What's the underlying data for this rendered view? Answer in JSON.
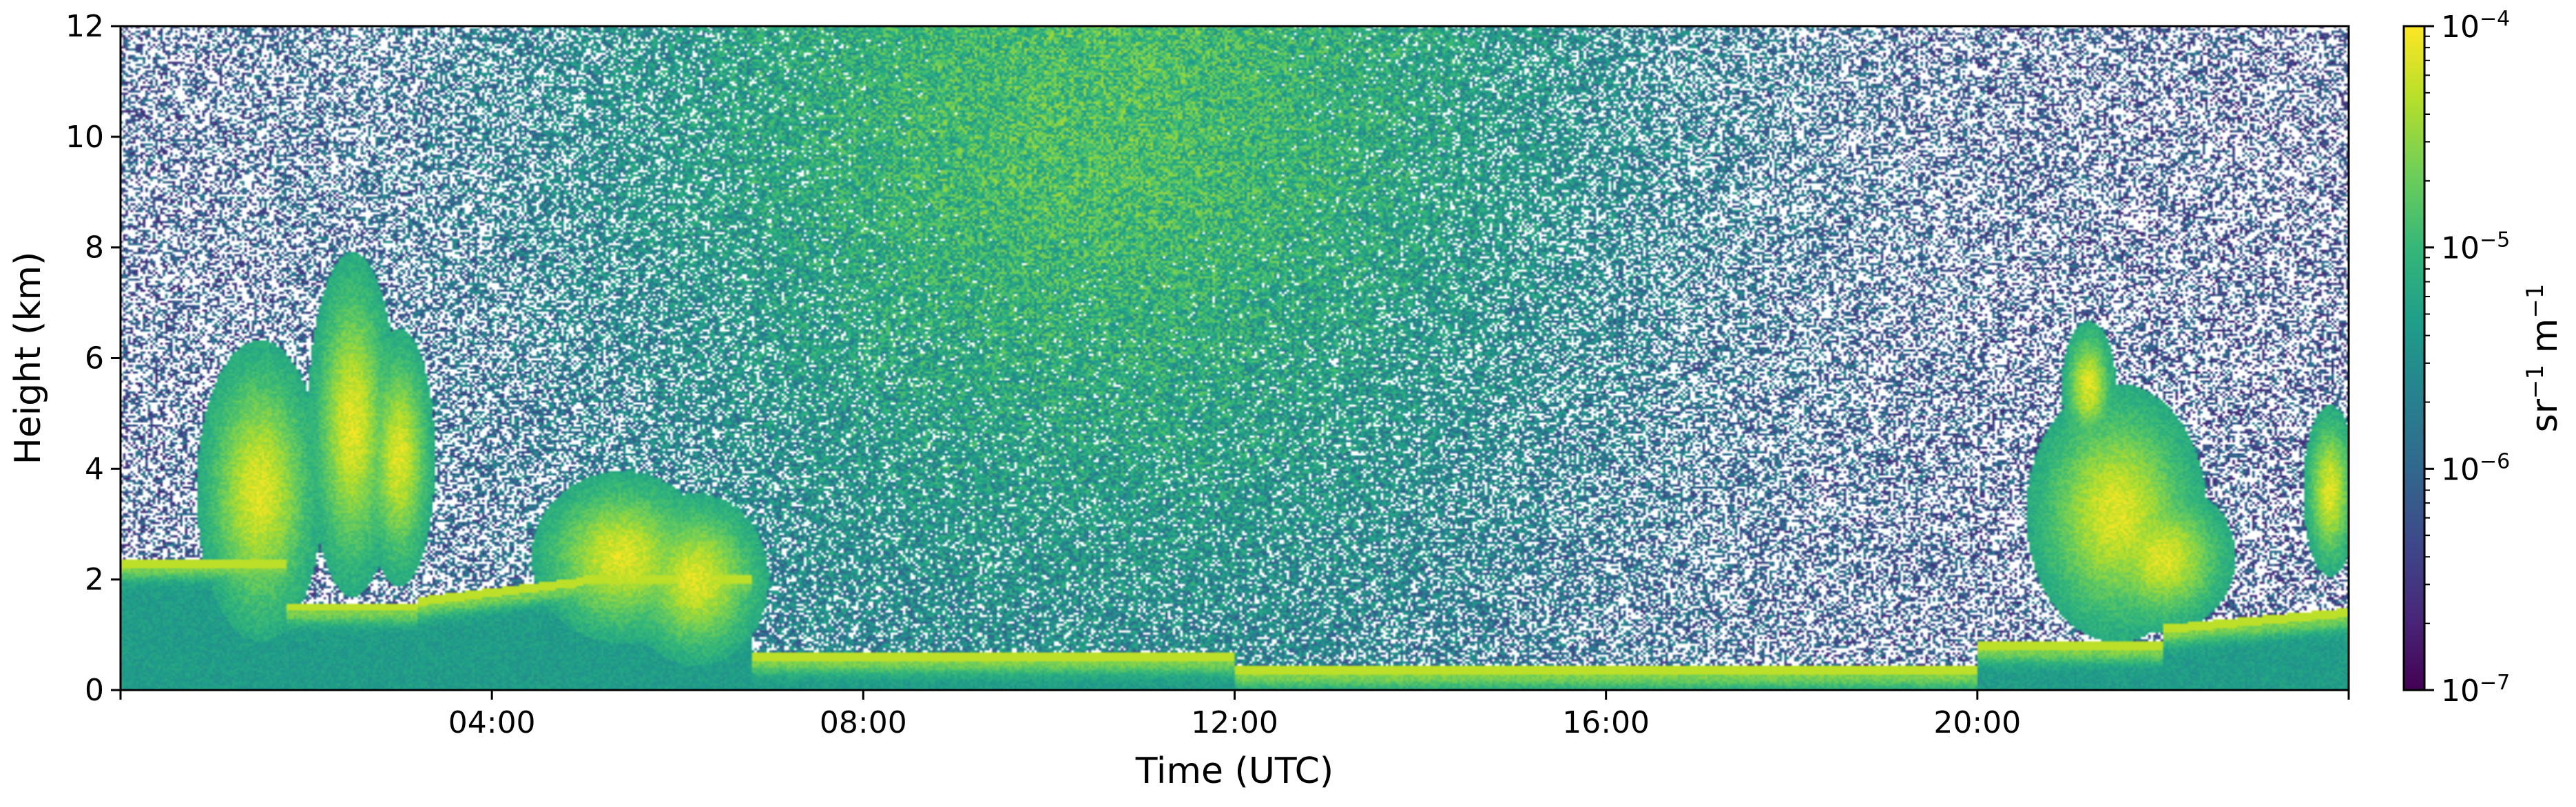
{
  "chart_data": {
    "type": "heatmap",
    "title": "",
    "xlabel": "Time (UTC)",
    "ylabel": "Height (km)",
    "x_unit": "hours UTC",
    "xlim": [
      0,
      24
    ],
    "ylim": [
      0,
      12
    ],
    "xticks": [
      {
        "value": 4,
        "label": "04:00"
      },
      {
        "value": 8,
        "label": "08:00"
      },
      {
        "value": 12,
        "label": "12:00"
      },
      {
        "value": 16,
        "label": "16:00"
      },
      {
        "value": 20,
        "label": "20:00"
      }
    ],
    "yticks": [
      {
        "value": 0,
        "label": "0"
      },
      {
        "value": 2,
        "label": "2"
      },
      {
        "value": 4,
        "label": "4"
      },
      {
        "value": 6,
        "label": "6"
      },
      {
        "value": 8,
        "label": "8"
      },
      {
        "value": 10,
        "label": "10"
      },
      {
        "value": 12,
        "label": "12"
      }
    ],
    "colorbar": {
      "label_base": "sr",
      "label_sup1": "−1",
      "label_mid": " m",
      "label_sup2": "−1",
      "scale": "log",
      "colormap": "viridis",
      "range": [
        1e-07,
        0.0001
      ],
      "ticks": [
        {
          "value": 1e-07,
          "base": "10",
          "exp": "−7"
        },
        {
          "value": 1e-06,
          "base": "10",
          "exp": "−6"
        },
        {
          "value": 1e-05,
          "base": "10",
          "exp": "−5"
        },
        {
          "value": 0.0001,
          "base": "10",
          "exp": "−4"
        }
      ]
    },
    "grid": false,
    "colors": {
      "viridis": [
        "#440154",
        "#482878",
        "#3e4989",
        "#31688e",
        "#26828e",
        "#1f9e89",
        "#35b779",
        "#6ece58",
        "#b5de2b",
        "#fde725"
      ]
    }
  }
}
